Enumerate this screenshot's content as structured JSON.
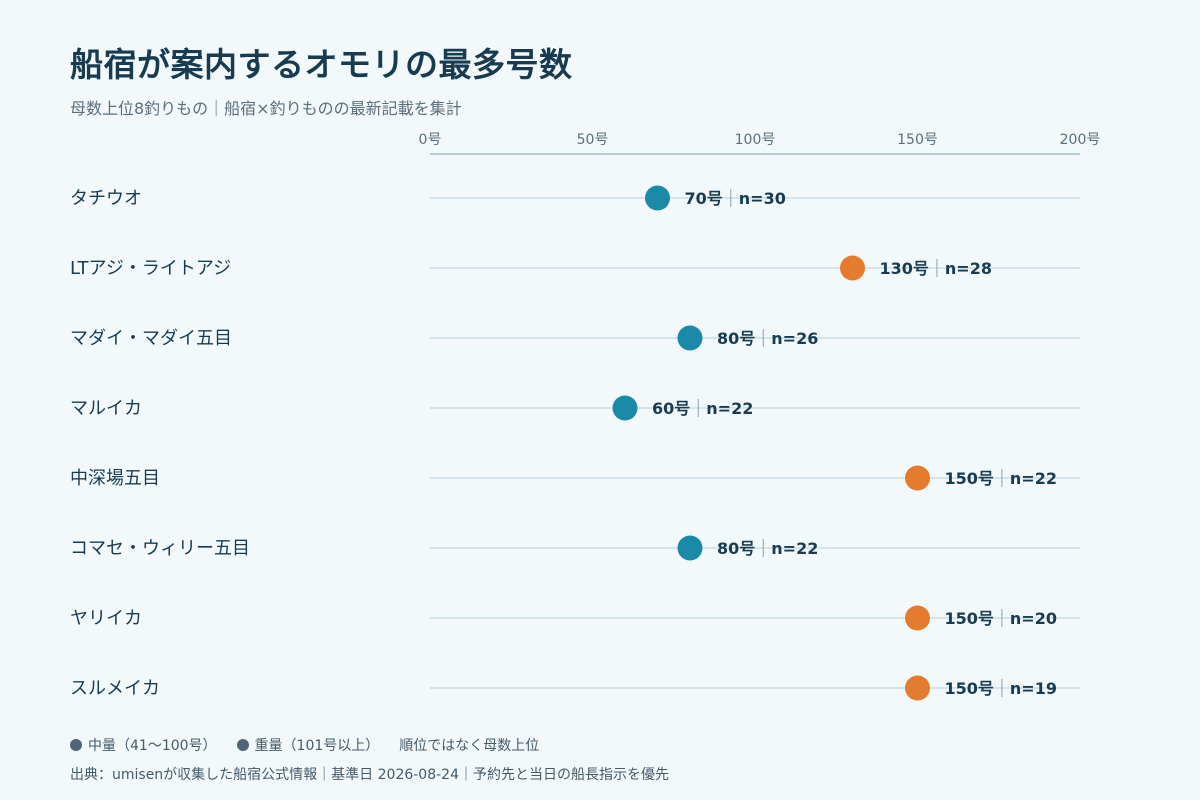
{
  "title": "船宿が案内するオモリの最多号数",
  "subtitle": "母数上位8釣りもの｜船宿×釣りものの最新記載を集計",
  "legend": {
    "medium_label": "中量（41〜100号）",
    "heavy_label": "重量（101号以上）",
    "note": "順位ではなく母数上位"
  },
  "source": "出典：umisenが収集した船宿公式情報｜基準日 2026-08-24｜予約先と当日の船長指示を優先",
  "colors": {
    "medium": "#1a8aa8",
    "heavy": "#e57b2e",
    "gridline": "#d5e4ea",
    "axis": "#9fbfcc",
    "label": "#173c52",
    "tick": "#5b6f7b"
  },
  "chart_data": {
    "type": "scatter",
    "x_unit": "号",
    "xlim": [
      0,
      200
    ],
    "x_ticks": [
      0,
      50,
      100,
      150,
      200
    ],
    "x_tick_labels": [
      "0号",
      "50号",
      "100号",
      "150号",
      "200号"
    ],
    "categories": [
      "タチウオ",
      "LTアジ・ライトアジ",
      "マダイ・マダイ五目",
      "マルイカ",
      "中深場五目",
      "コマセ・ウィリー五目",
      "ヤリイカ",
      "スルメイカ"
    ],
    "values": [
      70,
      130,
      80,
      60,
      150,
      80,
      150,
      150
    ],
    "n": [
      30,
      28,
      26,
      22,
      22,
      22,
      20,
      19
    ],
    "value_labels": [
      "70号",
      "130号",
      "80号",
      "60号",
      "150号",
      "80号",
      "150号",
      "150号"
    ],
    "n_labels": [
      "n=30",
      "n=28",
      "n=26",
      "n=22",
      "n=22",
      "n=22",
      "n=20",
      "n=19"
    ],
    "groups": [
      "medium",
      "heavy",
      "medium",
      "medium",
      "heavy",
      "medium",
      "heavy",
      "heavy"
    ]
  }
}
